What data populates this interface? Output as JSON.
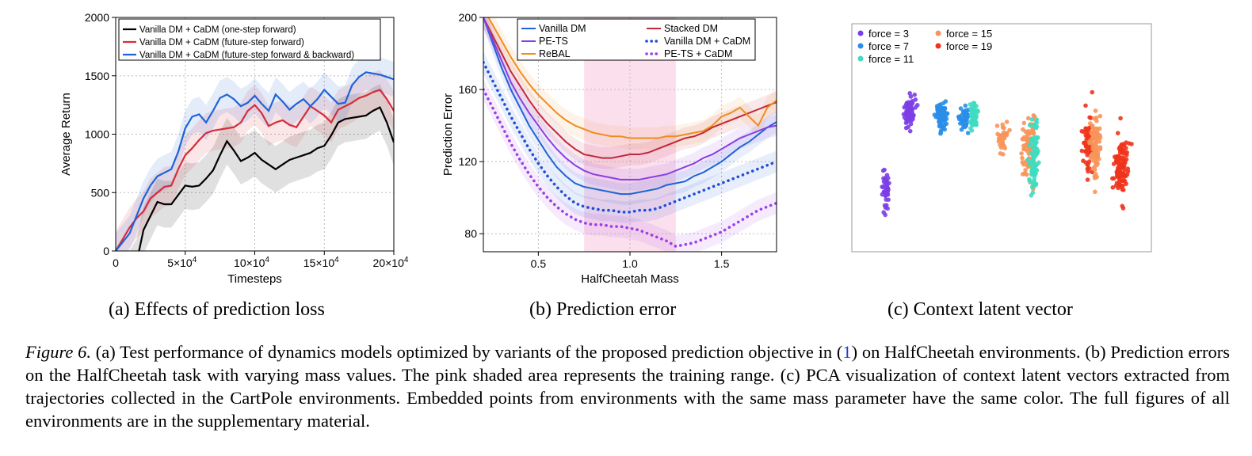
{
  "figures": [
    {
      "subcaption": "(a)  Effects of prediction loss",
      "chart_data": {
        "type": "line",
        "xlabel": "Timesteps",
        "ylabel": "Average Return",
        "xlim": [
          0,
          200000
        ],
        "ylim": [
          0,
          2000
        ],
        "xticks": [
          50000,
          100000,
          150000,
          200000
        ],
        "xtick_labels": [
          {
            "base": "5×10",
            "exp": "4"
          },
          {
            "base": "10×10",
            "exp": "4"
          },
          {
            "base": "15×10",
            "exp": "4"
          },
          {
            "base": "20×10",
            "exp": "4"
          }
        ],
        "yticks": [
          0,
          500,
          1000,
          1500,
          2000
        ],
        "ytick_labels": [
          "0",
          "500",
          "1000",
          "1500",
          "2000"
        ],
        "grid": true,
        "legend": "top",
        "x": [
          0,
          10000,
          15000,
          20000,
          25000,
          30000,
          35000,
          40000,
          45000,
          50000,
          55000,
          60000,
          65000,
          70000,
          75000,
          80000,
          85000,
          90000,
          95000,
          100000,
          105000,
          110000,
          115000,
          120000,
          125000,
          130000,
          135000,
          140000,
          145000,
          150000,
          155000,
          160000,
          165000,
          170000,
          175000,
          180000,
          185000,
          190000,
          195000,
          200000
        ],
        "series": [
          {
            "name": "Vanilla DM + CaDM (one-step forward)",
            "color": "#000000",
            "start_x": 10000,
            "values": [
              null,
              -200,
              -100,
              180,
              300,
              420,
              400,
              400,
              480,
              560,
              550,
              560,
              620,
              690,
              820,
              940,
              860,
              770,
              800,
              840,
              780,
              740,
              700,
              740,
              780,
              800,
              820,
              840,
              880,
              900,
              990,
              1100,
              1130,
              1140,
              1150,
              1160,
              1200,
              1230,
              1100,
              930
            ],
            "band": 200
          },
          {
            "name": "Vanilla DM + CaDM (future-step forward)",
            "color": "#d62c3a",
            "values": [
              0,
              200,
              280,
              340,
              450,
              500,
              550,
              560,
              700,
              820,
              880,
              950,
              1010,
              1030,
              1040,
              1050,
              1060,
              1100,
              1200,
              1250,
              1180,
              1070,
              1100,
              1120,
              1080,
              1060,
              1150,
              1240,
              1200,
              1160,
              1100,
              1210,
              1240,
              1270,
              1310,
              1330,
              1360,
              1380,
              1300,
              1200
            ],
            "band": 170
          },
          {
            "name": "Vanilla DM + CaDM (future-step forward & backward)",
            "color": "#1f63d6",
            "values": [
              0,
              150,
              300,
              450,
              560,
              640,
              670,
              700,
              850,
              1050,
              1150,
              1170,
              1100,
              1200,
              1310,
              1340,
              1300,
              1240,
              1270,
              1330,
              1260,
              1200,
              1340,
              1280,
              1210,
              1260,
              1300,
              1240,
              1300,
              1380,
              1320,
              1260,
              1270,
              1420,
              1490,
              1530,
              1520,
              1510,
              1490,
              1470
            ],
            "band": 150
          }
        ]
      }
    },
    {
      "subcaption": "(b)  Prediction error",
      "chart_data": {
        "type": "line",
        "xlabel": "HalfCheetah Mass",
        "ylabel": "Prediction Error",
        "xlim": [
          0.2,
          1.8
        ],
        "ylim": [
          70,
          200
        ],
        "xticks": [
          0.5,
          1.0,
          1.5
        ],
        "xtick_labels": [
          "0.5",
          "1.0",
          "1.5"
        ],
        "yticks": [
          80,
          120,
          160,
          200
        ],
        "ytick_labels": [
          "80",
          "120",
          "160",
          "200"
        ],
        "training_range": [
          0.75,
          1.25
        ],
        "grid": true,
        "legend": "top",
        "x": [
          0.2,
          0.25,
          0.3,
          0.35,
          0.4,
          0.45,
          0.5,
          0.55,
          0.6,
          0.65,
          0.7,
          0.75,
          0.8,
          0.85,
          0.9,
          0.95,
          1.0,
          1.05,
          1.1,
          1.15,
          1.2,
          1.25,
          1.3,
          1.35,
          1.4,
          1.45,
          1.5,
          1.55,
          1.6,
          1.65,
          1.7,
          1.75,
          1.8
        ],
        "series": [
          {
            "name": "Vanilla DM",
            "color": "#1f63d6",
            "style": "solid",
            "values": [
              200,
              186,
              172,
              160,
              150,
              140,
              132,
              124,
              117,
              112,
              108,
              106,
              105,
              104,
              103,
              102,
              102,
              103,
              104,
              105,
              107,
              108,
              109,
              112,
              114,
              117,
              120,
              124,
              128,
              131,
              135,
              139,
              142
            ]
          },
          {
            "name": "Stacked DM",
            "color": "#c0283a",
            "style": "solid",
            "values": [
              200,
              190,
              180,
              170,
              162,
              154,
              147,
              141,
              136,
              131,
              127,
              124,
              123,
              122,
              122,
              123,
              124,
              124,
              125,
              127,
              129,
              131,
              133,
              134,
              136,
              139,
              141,
              143,
              145,
              147,
              149,
              151,
              153
            ]
          },
          {
            "name": "PE-TS",
            "color": "#8a3fe0",
            "style": "solid",
            "values": [
              200,
              188,
              176,
              164,
              155,
              147,
              140,
              133,
              127,
              122,
              118,
              115,
              113,
              112,
              111,
              110,
              110,
              110,
              111,
              112,
              113,
              115,
              117,
              119,
              122,
              124,
              127,
              130,
              133,
              135,
              137,
              139,
              140
            ]
          },
          {
            "name": "Vanilla DM + CaDM",
            "color": "#1f4fd6",
            "style": "dotted",
            "values": [
              175,
              165,
              155,
              145,
              136,
              127,
              119,
              112,
              106,
              101,
              97,
              95,
              94,
              93,
              93,
              92,
              92,
              93,
              93,
              94,
              96,
              98,
              100,
              102,
              104,
              106,
              108,
              110,
              112,
              114,
              116,
              118,
              120
            ]
          },
          {
            "name": "ReBAL",
            "color": "#f08c1e",
            "style": "solid",
            "values": [
              205,
              196,
              187,
              178,
              170,
              163,
              157,
              152,
              147,
              143,
              140,
              138,
              136,
              135,
              134,
              134,
              133,
              133,
              133,
              133,
              134,
              134,
              135,
              136,
              137,
              140,
              145,
              147,
              150,
              145,
              140,
              150,
              154
            ]
          },
          {
            "name": "PE-TS + CaDM",
            "color": "#9b3fe8",
            "style": "dotted",
            "values": [
              160,
              150,
              140,
              130,
              121,
              113,
              106,
              100,
              95,
              91,
              88,
              86,
              85,
              85,
              84,
              84,
              83,
              82,
              80,
              78,
              76,
              73,
              74,
              75,
              77,
              79,
              81,
              84,
              87,
              90,
              93,
              95,
              97
            ]
          }
        ]
      }
    },
    {
      "subcaption": "(c)  Context latent vector",
      "chart_data": {
        "type": "scatter",
        "xlabel": "",
        "ylabel": "",
        "grid": false,
        "legend": "top-left",
        "series": [
          {
            "name": "force = 3",
            "color": "#7b3fe4"
          },
          {
            "name": "force = 7",
            "color": "#2a8ee8"
          },
          {
            "name": "force = 11",
            "color": "#3fdcc0"
          },
          {
            "name": "force = 15",
            "color": "#f7955a"
          },
          {
            "name": "force = 19",
            "color": "#f0341c"
          }
        ]
      }
    }
  ],
  "caption": {
    "label": "Figure 6.",
    "part1": " (a) Test performance of dynamics models optimized by variants of the proposed prediction objective in (",
    "ref": "1",
    "part2": ") on HalfCheetah environments. (b) Prediction errors on the HalfCheetah task with varying mass values. The pink shaded area represents the training range. (c) PCA visualization of context latent vectors extracted from trajectories collected in the CartPole environments. Embedded points from environments with the same mass parameter have the same color. The full figures of all environments are in the supplementary material."
  }
}
